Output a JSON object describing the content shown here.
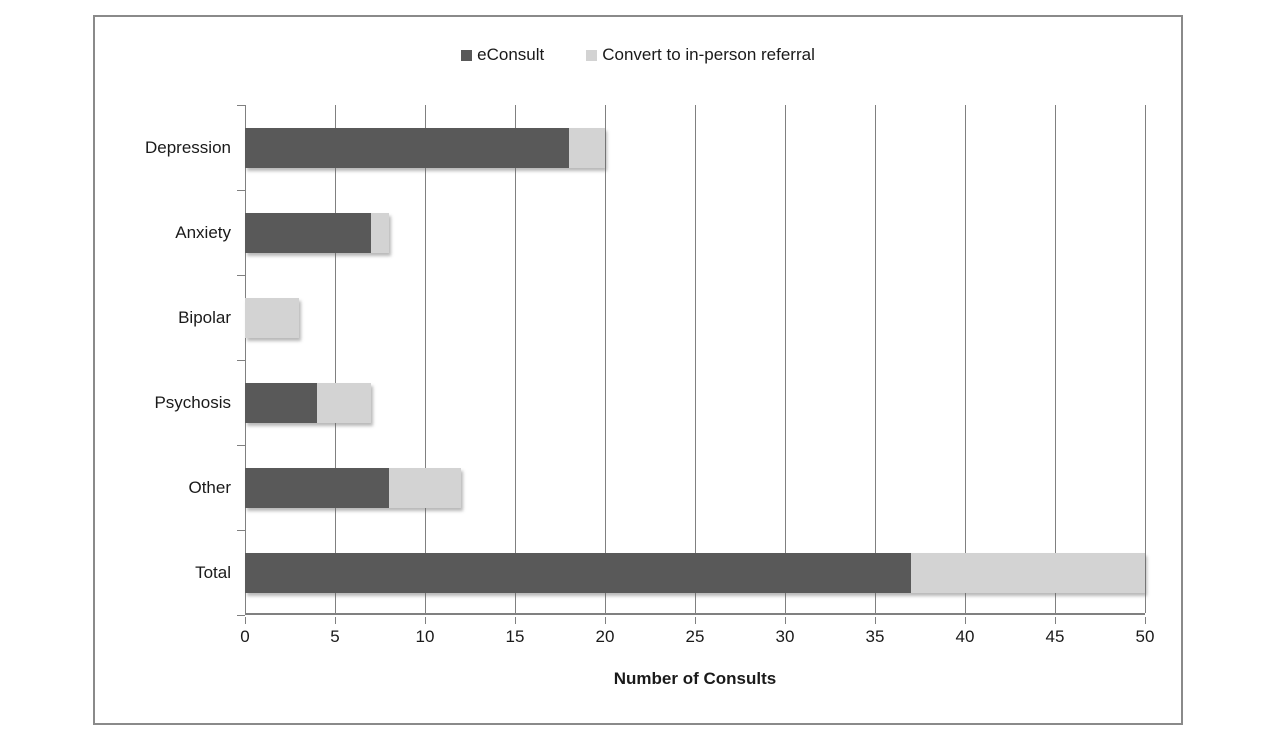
{
  "legend": {
    "items": [
      {
        "label": "eConsult",
        "color": "#595959"
      },
      {
        "label": "Convert to in-person referral",
        "color": "#d3d3d3"
      }
    ]
  },
  "chart_data": {
    "type": "bar",
    "orientation": "horizontal",
    "stacked": true,
    "title": "",
    "categories": [
      "Depression",
      "Anxiety",
      "Bipolar",
      "Psychosis",
      "Other",
      "Total"
    ],
    "series": [
      {
        "name": "eConsult",
        "color": "#595959",
        "values": [
          18,
          7,
          0,
          4,
          8,
          37
        ]
      },
      {
        "name": "Convert to in-person referral",
        "color": "#d3d3d3",
        "values": [
          2,
          1,
          3,
          3,
          4,
          13
        ]
      }
    ],
    "stack_totals": [
      20,
      8,
      3,
      7,
      12,
      50
    ],
    "xlabel": "Number of Consults",
    "ylabel": "",
    "xlim": [
      0,
      50
    ],
    "xticks": [
      0,
      5,
      10,
      15,
      20,
      25,
      30,
      35,
      40,
      45,
      50
    ],
    "grid": true,
    "gridline_color": "#808080",
    "legend_position": "top-center"
  }
}
